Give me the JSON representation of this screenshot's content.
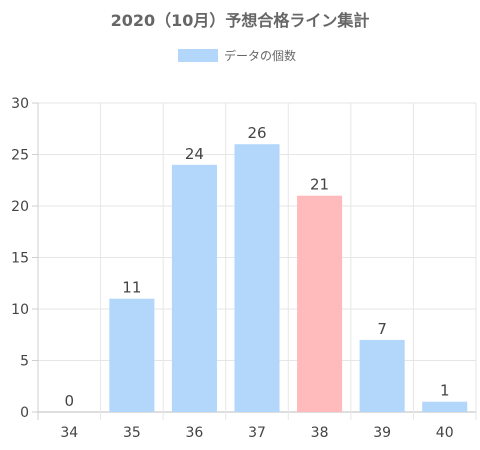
{
  "chart_data": {
    "type": "bar",
    "title": "2020（10月）予想合格ライン集計",
    "legend": {
      "placement": "top",
      "label": "データの個数"
    },
    "categories": [
      "34",
      "35",
      "36",
      "37",
      "38",
      "39",
      "40"
    ],
    "series": [
      {
        "name": "データの個数",
        "values": [
          0,
          11,
          24,
          26,
          21,
          7,
          1
        ]
      }
    ],
    "highlight_category": "38",
    "colors": {
      "bar": "#b3d7fb",
      "highlight": "#ffbabc",
      "grid": "#e6e6e6"
    },
    "ylim": [
      0,
      30
    ],
    "yticks": [
      0,
      5,
      10,
      15,
      20,
      25,
      30
    ],
    "grid": true,
    "xlabel": "",
    "ylabel": ""
  }
}
